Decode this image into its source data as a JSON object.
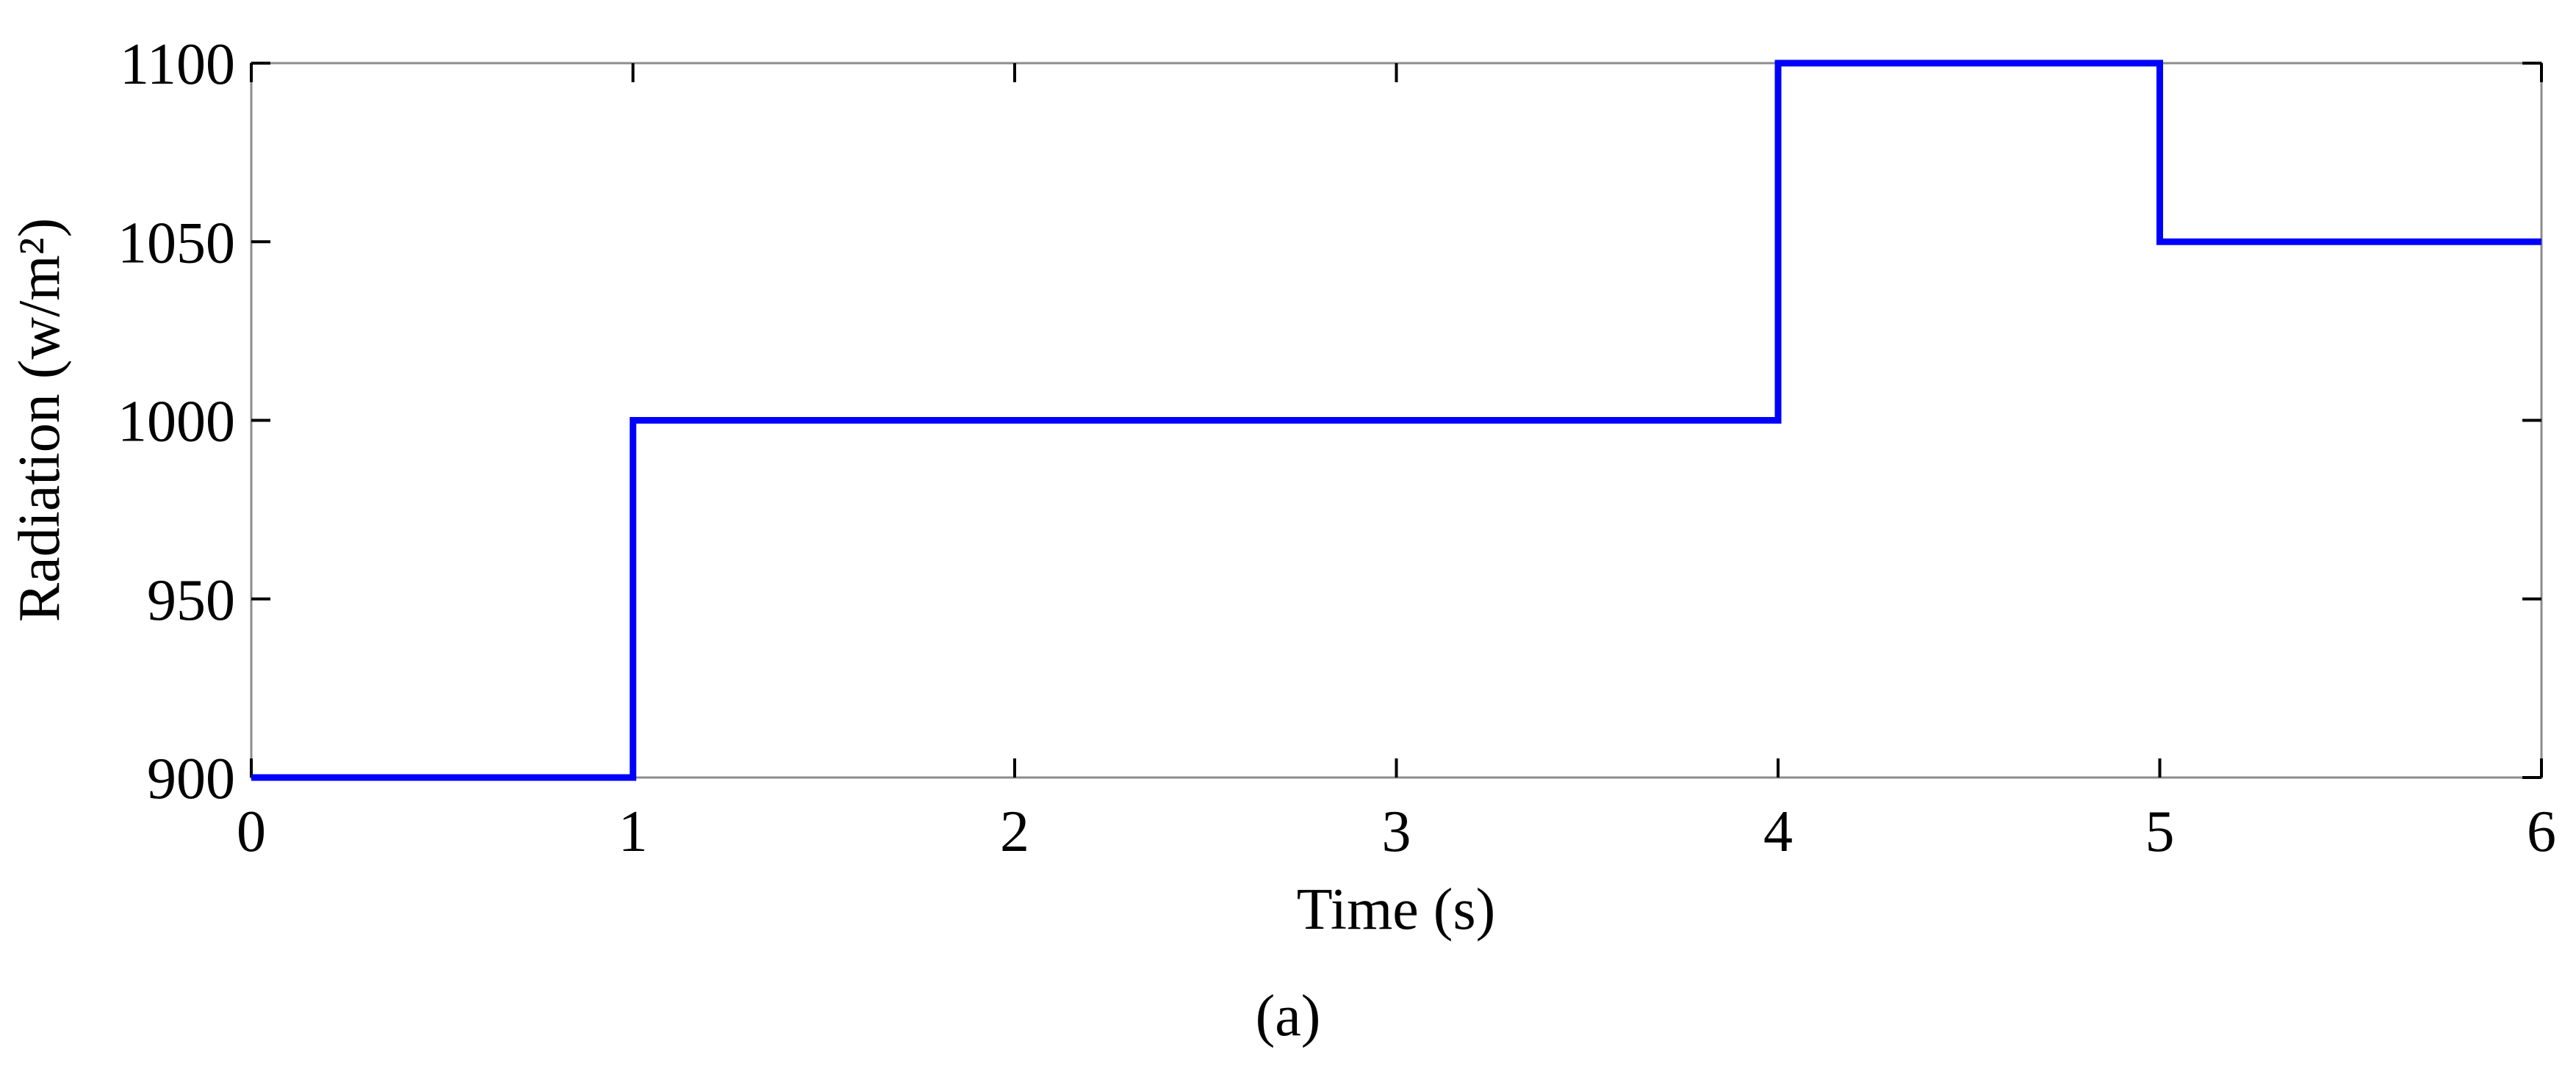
{
  "chart_data": {
    "type": "line",
    "x_label": "Time (s)",
    "y_label": "Radiation (w/m²)",
    "caption": "(a)",
    "series": [
      {
        "name": "Radiation",
        "color": "#0000ff",
        "x": [
          0,
          1,
          1,
          4,
          4,
          5,
          5,
          6
        ],
        "values": [
          900,
          900,
          1000,
          1000,
          1100,
          1100,
          1050,
          1050
        ]
      }
    ],
    "xlim": [
      0,
      6
    ],
    "xticks": [
      0,
      1,
      2,
      3,
      4,
      5,
      6
    ],
    "ylim": [
      900,
      1100
    ],
    "yticks": [
      900,
      950,
      1000,
      1050,
      1100
    ],
    "grid": false
  }
}
